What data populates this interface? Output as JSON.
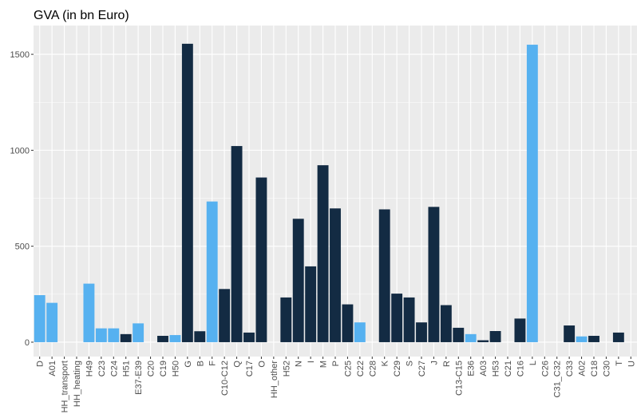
{
  "chart_data": {
    "type": "bar",
    "title": "GVA (in bn Euro)",
    "categories": [
      "D",
      "A01",
      "HH_transport",
      "HH_heating",
      "H49",
      "C23",
      "C24",
      "H51",
      "E37-E39",
      "C20",
      "C19",
      "H50",
      "G",
      "B",
      "F",
      "C10-C12",
      "Q",
      "C17",
      "O",
      "HH_other",
      "H52",
      "N",
      "I",
      "M",
      "P",
      "C25",
      "C22",
      "C28",
      "K",
      "C29",
      "S",
      "C27",
      "J",
      "R",
      "C13-C15",
      "E36",
      "A03",
      "H53",
      "C21",
      "C16",
      "L",
      "C26",
      "C31_C32",
      "C33",
      "A02",
      "C18",
      "C30",
      "T",
      "U"
    ],
    "values": [
      245,
      205,
      0,
      0,
      305,
      72,
      72,
      42,
      98,
      0,
      33,
      37,
      1555,
      57,
      733,
      277,
      1022,
      50,
      858,
      0,
      233,
      643,
      395,
      922,
      697,
      197,
      103,
      0,
      692,
      253,
      233,
      103,
      705,
      193,
      75,
      42,
      10,
      58,
      0,
      123,
      1550,
      0,
      0,
      87,
      30,
      33,
      0,
      50,
      0
    ],
    "colors": [
      "#56b1f0",
      "#56b1f0",
      "#132b43",
      "#132b43",
      "#56b1f0",
      "#56b1f0",
      "#56b1f0",
      "#132b43",
      "#56b1f0",
      "#132b43",
      "#132b43",
      "#56b1f0",
      "#132b43",
      "#132b43",
      "#56b1f0",
      "#132b43",
      "#132b43",
      "#132b43",
      "#132b43",
      "#132b43",
      "#132b43",
      "#132b43",
      "#132b43",
      "#132b43",
      "#132b43",
      "#132b43",
      "#56b1f0",
      "#132b43",
      "#132b43",
      "#132b43",
      "#132b43",
      "#132b43",
      "#132b43",
      "#132b43",
      "#132b43",
      "#56b1f0",
      "#132b43",
      "#132b43",
      "#132b43",
      "#132b43",
      "#56b1f0",
      "#132b43",
      "#132b43",
      "#132b43",
      "#56b1f0",
      "#132b43",
      "#132b43",
      "#132b43",
      "#132b43"
    ],
    "ylim": [
      -75,
      1650
    ],
    "yticks": [
      0,
      500,
      1000,
      1500
    ],
    "grid": true
  }
}
